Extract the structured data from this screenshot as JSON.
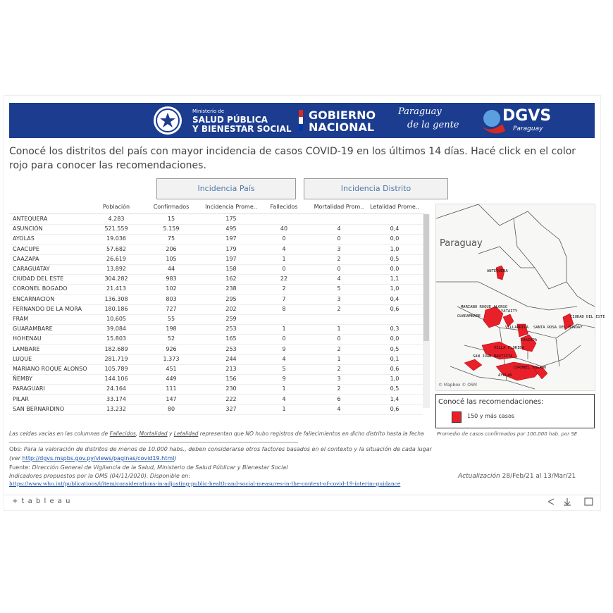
{
  "banner": {
    "ministry_small": "Ministerio de",
    "ministry_line1": "SALUD PÚBLICA",
    "ministry_line2": "Y BIENESTAR SOCIAL",
    "gov_line1": "GOBIERNO",
    "gov_line2": "NACIONAL",
    "slogan_line1": "Paraguay",
    "slogan_line2": "de la gente",
    "dgvs": "DGVS",
    "dgvs_sub": "Paraguay"
  },
  "intro": "Conocé los distritos del país con mayor incidencia de casos COVID-19 en los últimos 14 días. Hacé click en el color rojo para conocer las recomendaciones.",
  "buttons": [
    "Incidencia País",
    "Incidencia Distrito"
  ],
  "table": {
    "headers": [
      "Población",
      "Confirmados",
      "Incidencia Prome..",
      "Fallecidos",
      "Mortalidad Prom..",
      "Letalidad Prome.."
    ],
    "rows": [
      [
        "ANTEQUERA",
        "4.283",
        "15",
        "175",
        null,
        null,
        null
      ],
      [
        "ASUNCIÓN",
        "521.559",
        "5.159",
        "495",
        "40",
        "4",
        "0,4"
      ],
      [
        "AYOLAS",
        "19.036",
        "75",
        "197",
        "0",
        "0",
        "0,0"
      ],
      [
        "CAACUPE",
        "57.682",
        "206",
        "179",
        "4",
        "3",
        "1,0"
      ],
      [
        "CAAZAPA",
        "26.619",
        "105",
        "197",
        "1",
        "2",
        "0,5"
      ],
      [
        "CARAGUATAY",
        "13.892",
        "44",
        "158",
        "0",
        "0",
        "0,0"
      ],
      [
        "CIUDAD DEL ESTE",
        "304.282",
        "983",
        "162",
        "22",
        "4",
        "1,1"
      ],
      [
        "CORONEL BOGADO",
        "21.413",
        "102",
        "238",
        "2",
        "5",
        "1,0"
      ],
      [
        "ENCARNACION",
        "136.308",
        "803",
        "295",
        "7",
        "3",
        "0,4"
      ],
      [
        "FERNANDO DE LA MORA",
        "180.186",
        "727",
        "202",
        "8",
        "2",
        "0,6"
      ],
      [
        "FRAM",
        "10.605",
        "55",
        "259",
        null,
        null,
        null
      ],
      [
        "GUARAMBARE",
        "39.084",
        "198",
        "253",
        "1",
        "1",
        "0,3"
      ],
      [
        "HOHENAU",
        "15.803",
        "52",
        "165",
        "0",
        "0",
        "0,0"
      ],
      [
        "LAMBARE",
        "182.689",
        "926",
        "253",
        "9",
        "2",
        "0,5"
      ],
      [
        "LUQUE",
        "281.719",
        "1.373",
        "244",
        "4",
        "1",
        "0,1"
      ],
      [
        "MARIANO ROQUE ALONSO",
        "105.789",
        "451",
        "213",
        "5",
        "2",
        "0,6"
      ],
      [
        "ÑEMBY",
        "144.106",
        "449",
        "156",
        "9",
        "3",
        "1,0"
      ],
      [
        "PARAGUARI",
        "24.164",
        "111",
        "230",
        "1",
        "2",
        "0,5"
      ],
      [
        "PILAR",
        "33.174",
        "147",
        "222",
        "4",
        "6",
        "1,4"
      ],
      [
        "SAN BERNARDINO",
        "13.232",
        "80",
        "327",
        "1",
        "4",
        "0,6"
      ]
    ]
  },
  "map": {
    "country": "Paraguay",
    "labels": [
      "ANTEQUERA",
      "MARIANO ROQUE ALONSO",
      "GUARAMBARE",
      "YATAITY",
      "VILLARRICA",
      "SANTA ROSA DEL MONDAY",
      "CIUDAD DEL ESTE",
      "CAAZAPA",
      "VILLA FLORIDA",
      "SAN JUAN BAUTISTA",
      "CORONEL BOGADO",
      "AYOLAS"
    ],
    "attribution": "© Mapbox © OSM"
  },
  "legend": {
    "title": "Conocé las recomendaciones:",
    "item": "150 y más casos",
    "note": "Promedio de casos confirmados por 100.000 hab. por SE"
  },
  "footnote": [
    "Las celdas vacías en las columnas de ",
    "Fallecidos",
    ", ",
    "Mortalidad",
    " y ",
    "Letalidad",
    " representan que NO hubo registros de fallecimientos en dicho distrito hasta la fecha"
  ],
  "notes": {
    "obs_label": "Obs:",
    "obs_text": "Para la valoración de distritos de menos de 10.000 habs., deben considerarse otros factores basados en el contexto y la situación de cada lugar",
    "see_open": "(ver ",
    "see_link": "http://dgvs.mspbs.gov.py/views/paginas/covid19.html",
    "see_close": ")",
    "source_label": "Fuente:",
    "source_text": "Dirección General de Vigilancia de la Salud, Ministerio de Salud Públicar y Bienestar Social",
    "indicators": "Indicadores propuestos por la OMS (04/11/2020). Disponible en:",
    "who_link": "https://www.who.int/publications/i/item/considerations-in-adjusting-public-health-and-social-measures-in-the-context-of-covid-19-interim-guidance"
  },
  "update": {
    "label": "Actualización",
    "range": "28/Feb/21 al 13/Mar/21"
  },
  "toolbar": {
    "brand": "+ t a b l e a u"
  }
}
